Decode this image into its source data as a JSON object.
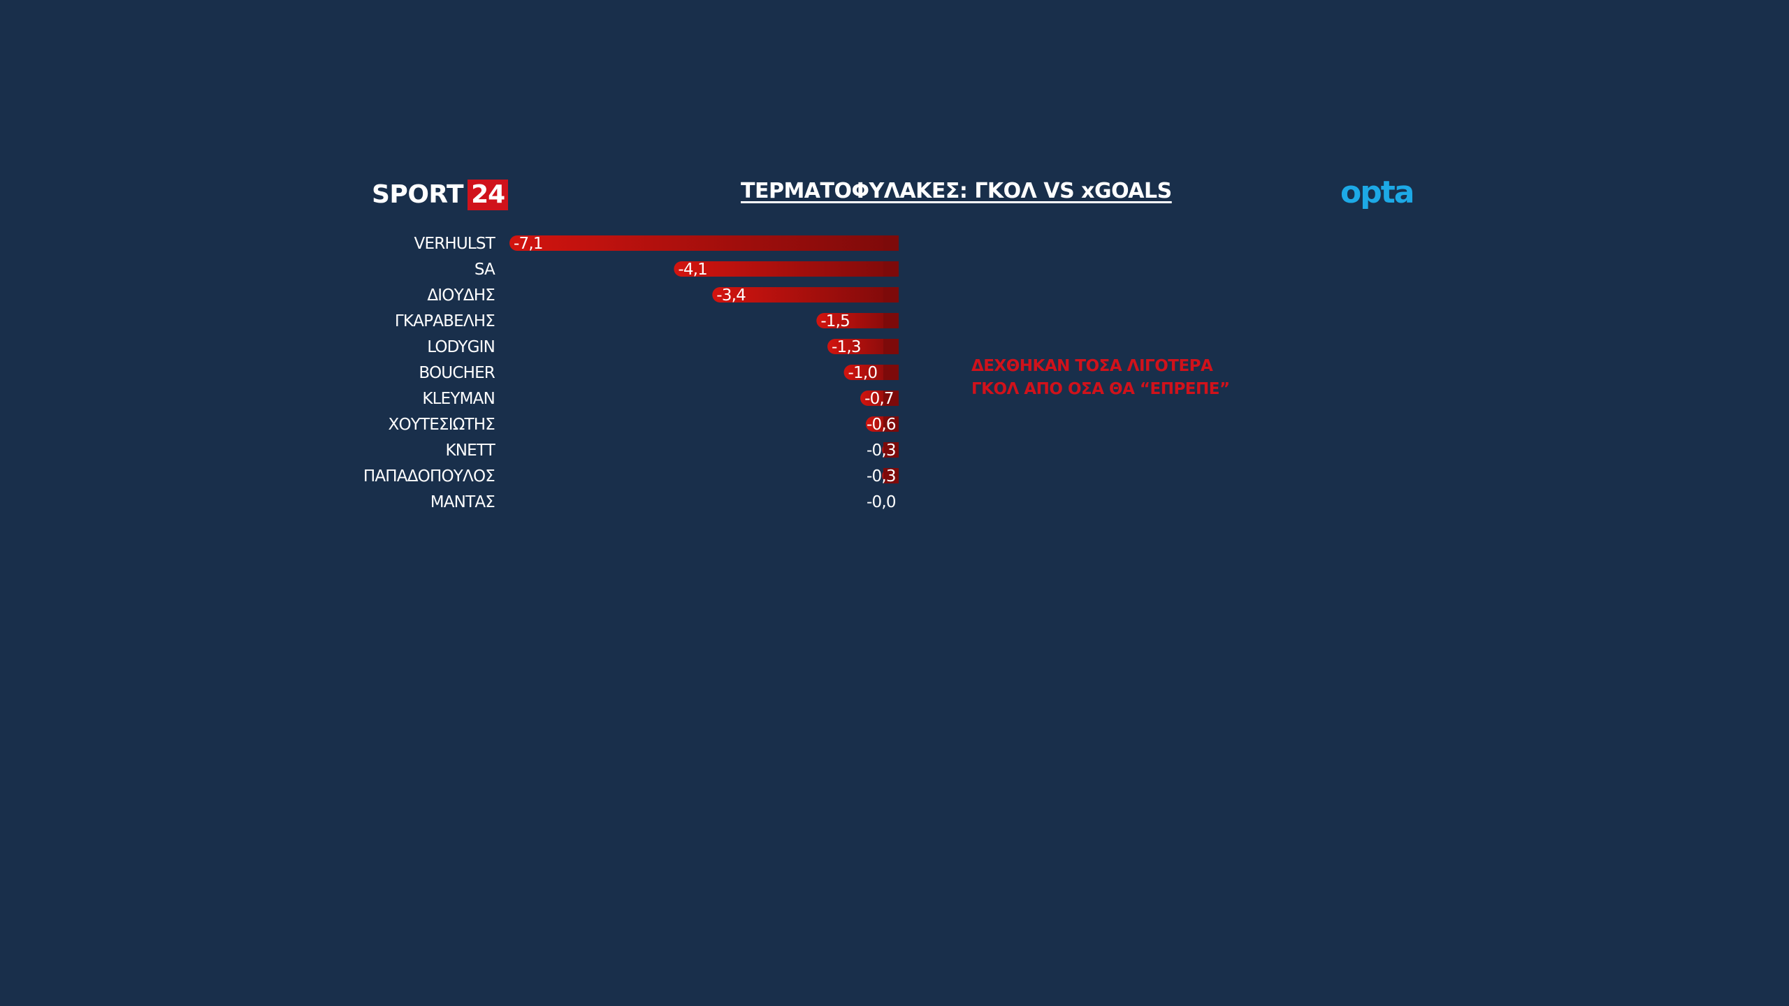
{
  "header": {
    "logo_word": "SPORT",
    "logo_number": "24",
    "title": "ΤΕΡΜΑΤΟΦΥΛΑΚΕΣ: ΓΚΟΛ VS xGOALS",
    "partner_logo": "opta"
  },
  "annotation": {
    "line1": "ΔΕΧΘΗΚΑΝ ΤΟΣΑ ΛΙΓΟΤΕΡΑ",
    "line2": "ΓΚΟΛ ΑΠΟ ΟΣΑ ΘΑ “ΕΠΡΕΠΕ”"
  },
  "colors": {
    "background": "#192f4b",
    "bar_light": "#d2140f",
    "bar_dark": "#7d0a0a",
    "text": "#ffffff",
    "annotation": "#d0121b",
    "brand_red": "#d0121b",
    "opta_blue": "#1da9e6"
  },
  "chart_data": {
    "type": "bar",
    "orientation": "horizontal",
    "title": "ΤΕΡΜΑΤΟΦΥΛΑΚΕΣ: ΓΚΟΛ VS xGOALS",
    "categories": [
      "VERHULST",
      "SA",
      "ΔΙΟΥΔΗΣ",
      "ΓΚΑΡΑΒΕΛΗΣ",
      "LODYGIN",
      "BOUCHER",
      "KLEYMAN",
      "ΧΟΥΤΕΣΙΩΤΗΣ",
      "KNETT",
      "ΠΑΠΑΔΟΠΟΥΛΟΣ",
      "ΜΑΝΤΑΣ"
    ],
    "values": [
      -7.1,
      -4.1,
      -3.4,
      -1.5,
      -1.3,
      -1.0,
      -0.7,
      -0.6,
      -0.3,
      -0.3,
      -0.0
    ],
    "value_labels": [
      "-7,1",
      "-4,1",
      "-3,4",
      "-1,5",
      "-1,3",
      "-1,0",
      "-0,7",
      "-0,6",
      "-0,3",
      "-0,3",
      "-0,0"
    ],
    "xlim": [
      -7.1,
      0
    ],
    "grid": false,
    "legend": "none"
  }
}
